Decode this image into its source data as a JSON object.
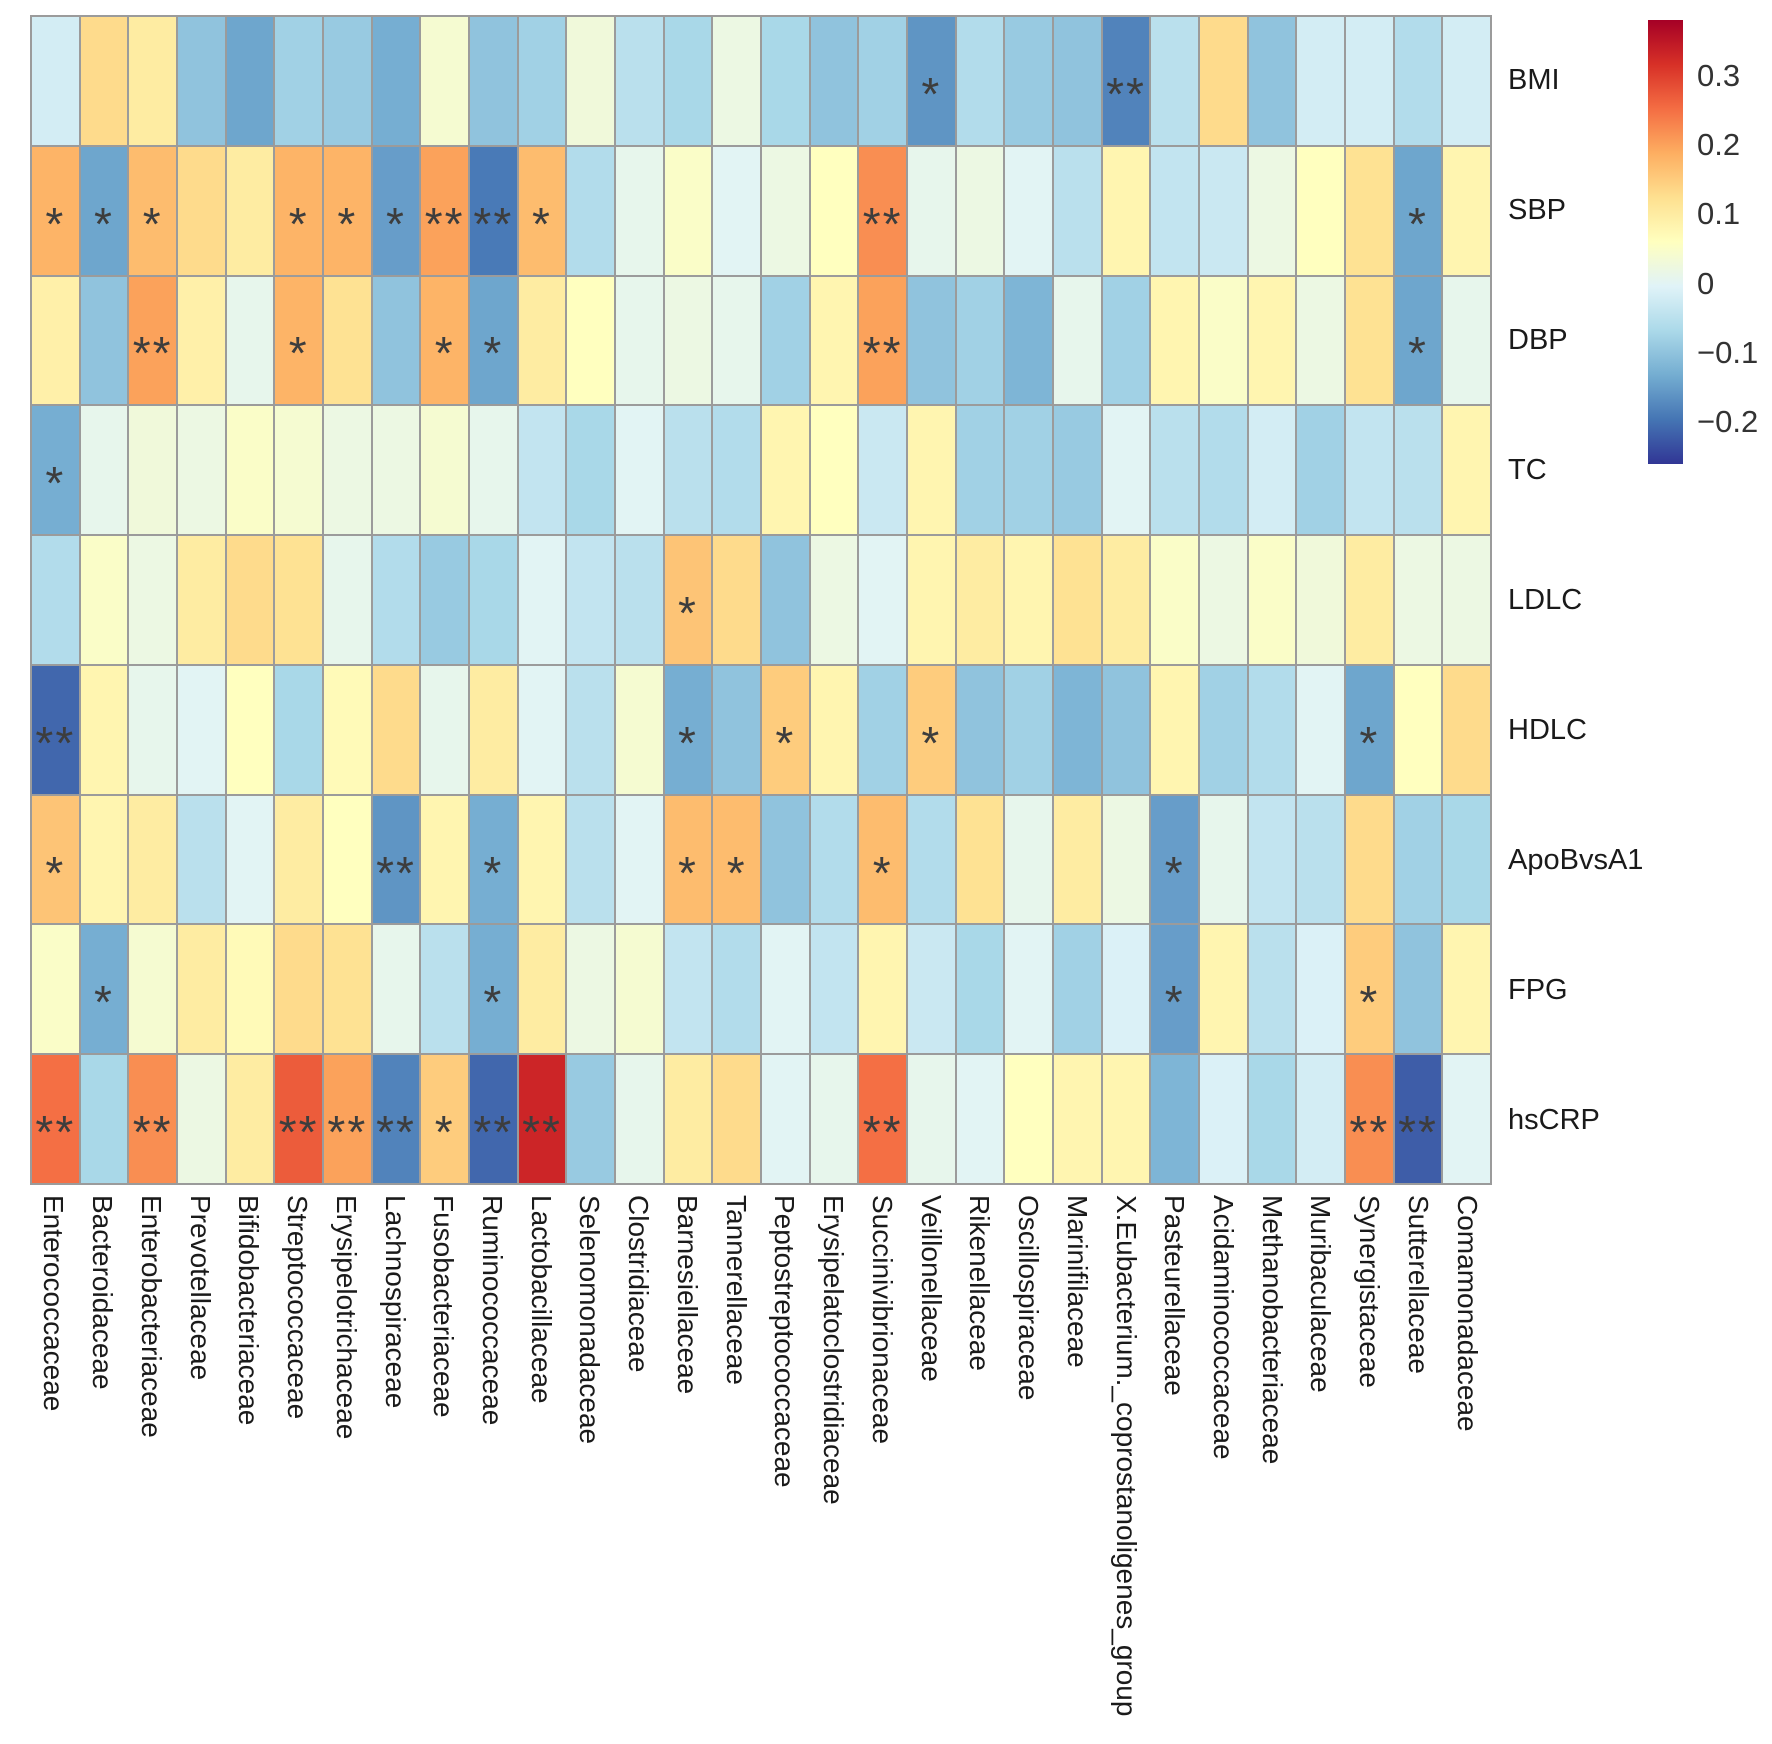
{
  "chart_data": {
    "type": "heatmap",
    "title": "",
    "rows": [
      "BMI",
      "SBP",
      "DBP",
      "TC",
      "LDLC",
      "HDLC",
      "ApoBvsA1",
      "FPG",
      "hsCRP"
    ],
    "columns": [
      "Enterococcaceae",
      "Bacteroidaceae",
      "Enterobacteriaceae",
      "Prevotellaceae",
      "Bifidobacteriaceae",
      "Streptococcaceae",
      "Erysipelotrichaceae",
      "Lachnospiraceae",
      "Fusobacteriaceae",
      "Ruminococcaceae",
      "Lactobacillaceae",
      "Selenomonadaceae",
      "Clostridiaceae",
      "Barnesiellaceae",
      "Tannerellaceae",
      "Peptostreptococcaceae",
      "Erysipelatoclostridiaceae",
      "Succinivibrionaceae",
      "Veillonellaceae",
      "Rikenellaceae",
      "Oscillospiraceae",
      "Marinifilaceae",
      "X.Eubacterium._coprostanoligenes_group",
      "Pasteurellaceae",
      "Acidaminococcaceae",
      "Methanobacteriaceae",
      "Muribaculaceae",
      "Synergistaceae",
      "Sutterellaceae",
      "Comamonadaceae"
    ],
    "values": [
      [
        -0.02,
        0.13,
        0.1,
        -0.1,
        -0.14,
        -0.08,
        -0.09,
        -0.13,
        0.04,
        -0.1,
        -0.08,
        0.03,
        -0.05,
        -0.07,
        0.02,
        -0.07,
        -0.1,
        -0.08,
        -0.16,
        -0.06,
        -0.09,
        -0.1,
        -0.18,
        -0.05,
        0.13,
        -0.1,
        -0.02,
        -0.02,
        -0.06,
        -0.02
      ],
      [
        0.18,
        -0.14,
        0.17,
        0.13,
        0.1,
        0.18,
        0.18,
        -0.15,
        0.2,
        -0.19,
        0.17,
        -0.06,
        0.01,
        0.05,
        0.0,
        0.02,
        0.06,
        0.22,
        0.01,
        0.02,
        0.0,
        -0.05,
        0.08,
        -0.04,
        -0.03,
        0.02,
        0.06,
        0.12,
        -0.14,
        0.08
      ],
      [
        0.09,
        -0.1,
        0.2,
        0.09,
        0.01,
        0.18,
        0.12,
        -0.1,
        0.18,
        -0.14,
        0.1,
        0.06,
        0.01,
        0.02,
        0.01,
        -0.08,
        0.08,
        0.2,
        -0.1,
        -0.08,
        -0.12,
        0.01,
        -0.08,
        0.08,
        0.05,
        0.08,
        0.02,
        0.12,
        -0.14,
        0.01
      ],
      [
        -0.13,
        0.01,
        0.03,
        0.02,
        0.05,
        0.04,
        0.02,
        0.02,
        0.04,
        0.01,
        -0.04,
        -0.07,
        0.0,
        -0.05,
        -0.06,
        0.08,
        0.06,
        -0.03,
        0.08,
        -0.08,
        -0.08,
        -0.09,
        0.0,
        -0.05,
        -0.06,
        -0.02,
        -0.08,
        -0.04,
        -0.05,
        0.08
      ],
      [
        -0.06,
        0.05,
        0.02,
        0.1,
        0.13,
        0.12,
        0.01,
        -0.06,
        -0.09,
        -0.07,
        0.0,
        -0.04,
        -0.05,
        0.16,
        0.13,
        -0.1,
        0.02,
        0.0,
        0.08,
        0.1,
        0.08,
        0.12,
        0.1,
        0.05,
        0.02,
        0.05,
        0.03,
        0.1,
        0.02,
        0.02
      ],
      [
        -0.21,
        0.08,
        0.01,
        0.0,
        0.06,
        -0.07,
        0.07,
        0.13,
        0.01,
        0.1,
        0.0,
        -0.05,
        0.04,
        -0.13,
        -0.1,
        0.15,
        0.08,
        -0.08,
        0.15,
        -0.1,
        -0.08,
        -0.12,
        -0.1,
        0.08,
        -0.08,
        -0.06,
        0.0,
        -0.14,
        0.06,
        0.13
      ],
      [
        0.16,
        0.08,
        0.1,
        -0.05,
        0.0,
        0.1,
        0.06,
        -0.16,
        0.08,
        -0.13,
        0.08,
        -0.05,
        0.0,
        0.17,
        0.17,
        -0.1,
        -0.06,
        0.17,
        -0.06,
        0.12,
        0.01,
        0.1,
        0.02,
        -0.15,
        0.01,
        -0.04,
        -0.05,
        0.13,
        -0.08,
        -0.07
      ],
      [
        0.05,
        -0.13,
        0.04,
        0.1,
        0.07,
        0.13,
        0.12,
        0.01,
        -0.05,
        -0.13,
        0.1,
        0.02,
        0.04,
        -0.04,
        -0.06,
        0.0,
        -0.04,
        0.08,
        -0.03,
        -0.07,
        0.0,
        -0.08,
        -0.01,
        -0.15,
        0.08,
        -0.05,
        -0.01,
        0.15,
        -0.1,
        0.08
      ],
      [
        0.25,
        -0.07,
        0.22,
        0.02,
        0.1,
        0.27,
        0.2,
        -0.18,
        0.15,
        -0.21,
        0.33,
        -0.09,
        0.01,
        0.1,
        0.13,
        0.0,
        0.01,
        0.25,
        0.01,
        0.0,
        0.06,
        0.08,
        0.08,
        -0.12,
        -0.01,
        -0.07,
        -0.02,
        0.22,
        -0.22,
        0.0
      ]
    ],
    "significance": [
      [
        "",
        "",
        "",
        "",
        "",
        "",
        "",
        "",
        "",
        "",
        "",
        "",
        "",
        "",
        "",
        "",
        "",
        "",
        "*",
        "",
        "",
        "",
        "**",
        "",
        "",
        "",
        "",
        "",
        "",
        ""
      ],
      [
        "*",
        "*",
        "*",
        "",
        "",
        "*",
        "*",
        "*",
        "**",
        "**",
        "*",
        "",
        "",
        "",
        "",
        "",
        "",
        "**",
        "",
        "",
        "",
        "",
        "",
        "",
        "",
        "",
        "",
        "",
        "*",
        ""
      ],
      [
        "",
        "",
        "**",
        "",
        "",
        "*",
        "",
        "",
        "*",
        "*",
        "",
        "",
        "",
        "",
        "",
        "",
        "",
        "**",
        "",
        "",
        "",
        "",
        "",
        "",
        "",
        "",
        "",
        "",
        "*",
        ""
      ],
      [
        "*",
        "",
        "",
        "",
        "",
        "",
        "",
        "",
        "",
        "",
        "",
        "",
        "",
        "",
        "",
        "",
        "",
        "",
        "",
        "",
        "",
        "",
        "",
        "",
        "",
        "",
        "",
        "",
        "",
        ""
      ],
      [
        "",
        "",
        "",
        "",
        "",
        "",
        "",
        "",
        "",
        "",
        "",
        "",
        "",
        "*",
        "",
        "",
        "",
        "",
        "",
        "",
        "",
        "",
        "",
        "",
        "",
        "",
        "",
        "",
        "",
        ""
      ],
      [
        "**",
        "",
        "",
        "",
        "",
        "",
        "",
        "",
        "",
        "",
        "",
        "",
        "",
        "*",
        "",
        "*",
        "",
        "",
        "*",
        "",
        "",
        "",
        "",
        "",
        "",
        "",
        "",
        "*",
        "",
        ""
      ],
      [
        "*",
        "",
        "",
        "",
        "",
        "",
        "",
        "**",
        "",
        "*",
        "",
        "",
        "",
        "*",
        "*",
        "",
        "",
        "*",
        "",
        "",
        "",
        "",
        "",
        "*",
        "",
        "",
        "",
        "",
        "",
        ""
      ],
      [
        "",
        "*",
        "",
        "",
        "",
        "",
        "",
        "",
        "",
        "*",
        "",
        "",
        "",
        "",
        "",
        "",
        "",
        "",
        "",
        "",
        "",
        "",
        "",
        "*",
        "",
        "",
        "",
        "*",
        "",
        ""
      ],
      [
        "**",
        "",
        "**",
        "",
        "",
        "**",
        "**",
        "**",
        "*",
        "**",
        "**",
        "",
        "",
        "",
        "",
        "",
        "",
        "**",
        "",
        "",
        "",
        "",
        "",
        "",
        "",
        "",
        "",
        "**",
        "**",
        ""
      ]
    ],
    "legend": {
      "tick_labels": [
        "0.3",
        "0.2",
        "0.1",
        "0",
        "-0.1",
        "-0.2"
      ],
      "tick_values": [
        0.3,
        0.2,
        0.1,
        0,
        -0.1,
        -0.2
      ],
      "vmin": -0.26,
      "vmax": 0.38,
      "position": "right"
    },
    "palette_low_to_high": [
      "#313695",
      "#4575b4",
      "#74add1",
      "#abd9e9",
      "#e0f3f8",
      "#ffffbf",
      "#fee090",
      "#fdae61",
      "#f46d43",
      "#d73027",
      "#a50026"
    ],
    "grid_line_color": "#9b9b9b",
    "significance_color": "#3d3d3d",
    "layout": {
      "x_labels_rotated": true,
      "y_labels_position": "right",
      "grid": true
    }
  }
}
